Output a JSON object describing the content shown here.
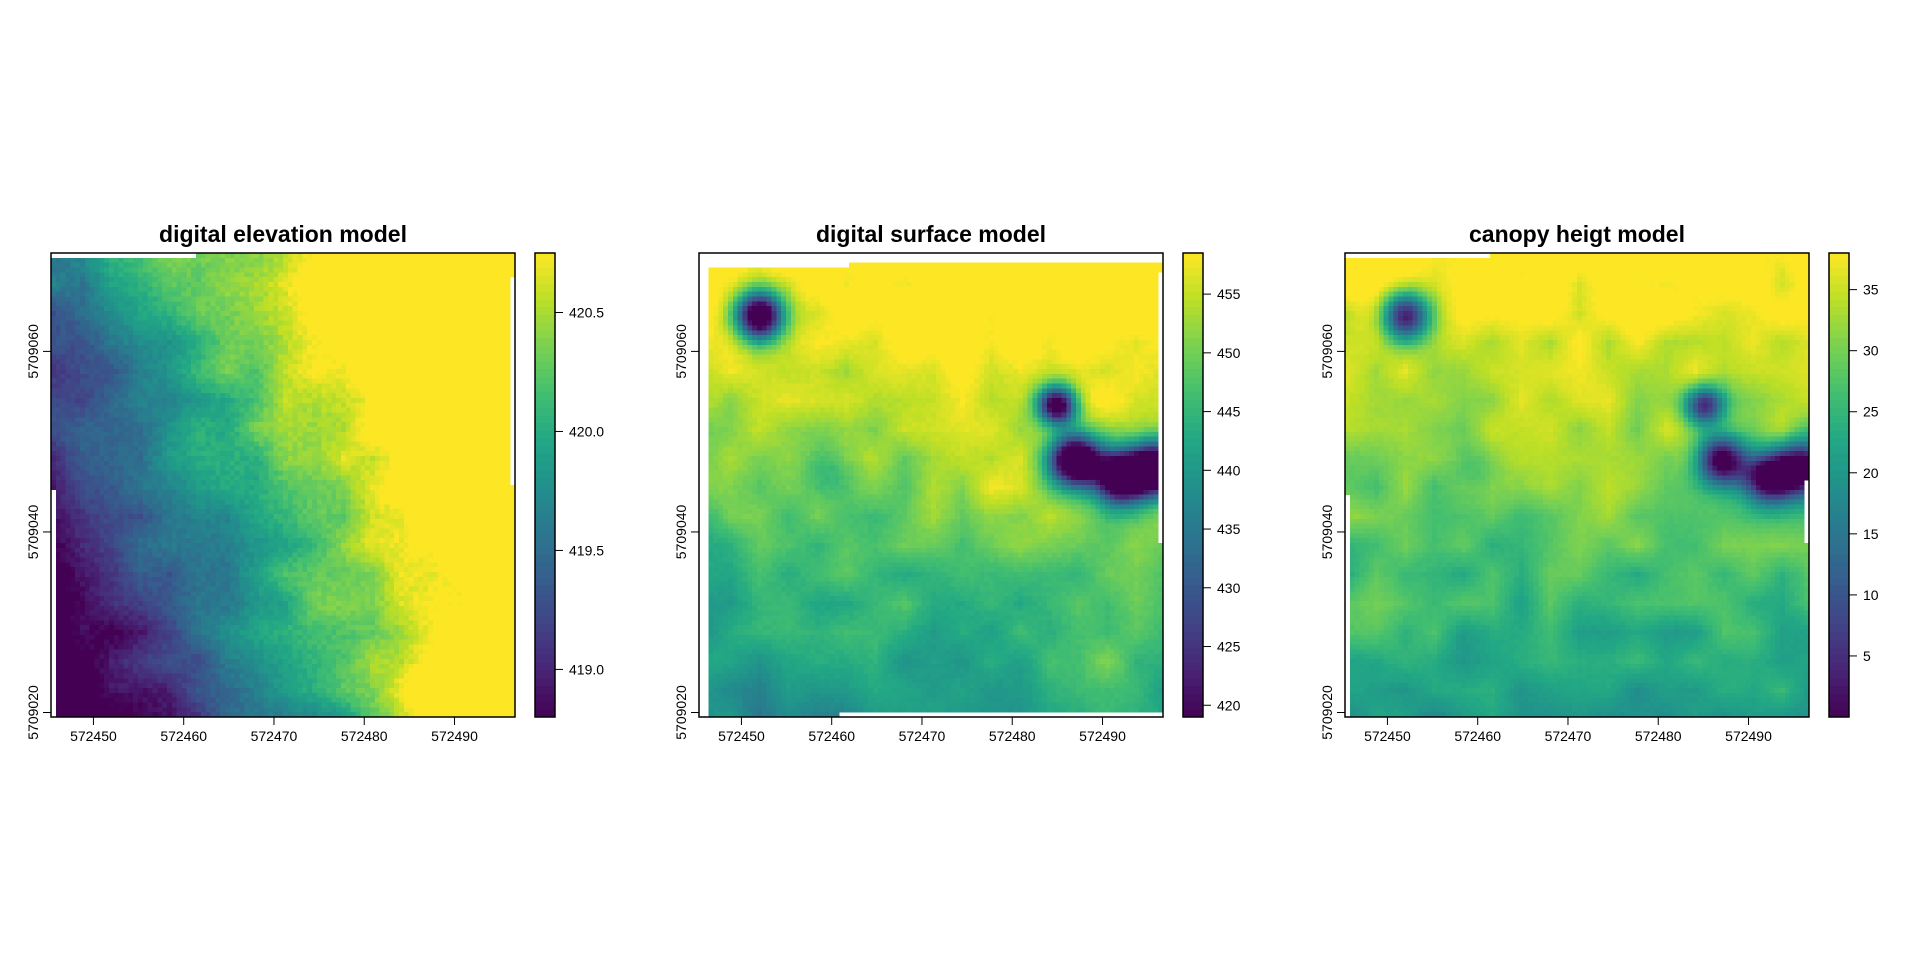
{
  "chart_data": [
    {
      "type": "heatmap",
      "title": "digital elevation model",
      "x_ticks": [
        572450,
        572460,
        572470,
        572480,
        572490
      ],
      "y_ticks": [
        5709020,
        5709040,
        5709060
      ],
      "xlim": [
        572445.3,
        572496.7
      ],
      "ylim": [
        5709019.5,
        5709070.9
      ],
      "legend": {
        "position": "right",
        "range": [
          418.8,
          420.75
        ],
        "ticks": [
          419.0,
          419.5,
          420.0,
          420.5
        ],
        "tick_labels": [
          "419.0",
          "419.5",
          "420.0",
          "420.5"
        ]
      },
      "grid": false,
      "field": {
        "base": 419.05,
        "gx": 0.28,
        "gy": -0.32,
        "noise": 0.12,
        "bumps": [
          {
            "x": 572492,
            "y": 5709022,
            "r": 7,
            "v": 1.2
          },
          {
            "x": 572475,
            "y": 5709028,
            "r": 10,
            "v": 0.3
          },
          {
            "x": 572450,
            "y": 5709060,
            "r": 7,
            "v": -0.25
          },
          {
            "x": 572468,
            "y": 5709069,
            "r": 6,
            "v": -0.25
          },
          {
            "x": 572488,
            "y": 5709042,
            "r": 5,
            "v": 0.3
          }
        ],
        "nodata": [
          {
            "x0": 572445.3,
            "x1": 572461.1,
            "y0": 5709070.4,
            "y1": 5709070.9
          },
          {
            "x0": 572445.3,
            "x1": 572445.7,
            "y0": 5709019.5,
            "y1": 5709044.5
          },
          {
            "x0": 572496.2,
            "x1": 572496.7,
            "y0": 5709045.0,
            "y1": 5709068.0
          }
        ]
      }
    },
    {
      "type": "heatmap",
      "title": "digital surface model",
      "x_ticks": [
        572450,
        572460,
        572470,
        572480,
        572490
      ],
      "y_ticks": [
        5709020,
        5709040,
        5709060
      ],
      "xlim": [
        572445.3,
        572496.7
      ],
      "ylim": [
        5709019.5,
        5709070.9
      ],
      "legend": {
        "position": "right",
        "range": [
          419.0,
          458.5
        ],
        "ticks": [
          420,
          425,
          430,
          435,
          440,
          445,
          450,
          455
        ],
        "tick_labels": [
          "420",
          "425",
          "430",
          "435",
          "440",
          "445",
          "450",
          "455"
        ]
      },
      "grid": false,
      "field": {
        "base": 449.0,
        "gx": 0.5,
        "gy": -6.0,
        "noise": 1.0,
        "bumps": [
          {
            "x": 572452,
            "y": 5709064,
            "r": 2.6,
            "v": -48
          },
          {
            "x": 572485,
            "y": 5709054,
            "r": 2.2,
            "v": -42
          },
          {
            "x": 572487,
            "y": 5709048,
            "r": 2.8,
            "v": -48
          },
          {
            "x": 572492,
            "y": 5709046,
            "r": 2.8,
            "v": -48
          },
          {
            "x": 572496,
            "y": 5709047,
            "r": 3.0,
            "v": -48
          },
          {
            "x": 572460,
            "y": 5709047,
            "r": 3.0,
            "v": -6
          },
          {
            "x": 572478,
            "y": 5709044,
            "r": 6,
            "v": 3
          },
          {
            "x": 572490,
            "y": 5709024,
            "r": 6,
            "v": 5
          }
        ],
        "nodata": [
          {
            "x0": 572445.3,
            "x1": 572446.3,
            "y0": 5709019.5,
            "y1": 5709070.9
          },
          {
            "x0": 572445.3,
            "x1": 572496.7,
            "y0": 5709069.9,
            "y1": 5709070.9
          },
          {
            "x0": 572445.3,
            "x1": 572462.0,
            "y0": 5709069.2,
            "y1": 5709070.9
          },
          {
            "x0": 572461.0,
            "x1": 572496.7,
            "y0": 5709019.5,
            "y1": 5709019.9
          },
          {
            "x0": 572496.2,
            "x1": 572496.7,
            "y0": 5709039.0,
            "y1": 5709069.0
          },
          {
            "x0": 572445.3,
            "x1": 572446.3,
            "y0": 5709019.5,
            "y1": 5709019.9
          }
        ]
      }
    },
    {
      "type": "heatmap",
      "title": "canopy heigt model",
      "x_ticks": [
        572450,
        572460,
        572470,
        572480,
        572490
      ],
      "y_ticks": [
        5709020,
        5709040,
        5709060
      ],
      "xlim": [
        572445.3,
        572496.7
      ],
      "ylim": [
        5709019.5,
        5709070.9
      ],
      "legend": {
        "position": "right",
        "range": [
          0.0,
          38.0
        ],
        "ticks": [
          5,
          10,
          15,
          20,
          25,
          30,
          35
        ],
        "tick_labels": [
          "5",
          "10",
          "15",
          "20",
          "25",
          "30",
          "35"
        ]
      },
      "grid": false,
      "field": {
        "base": 30.0,
        "gx": 0.0,
        "gy": -5.0,
        "noise": 0.7,
        "bumps": [
          {
            "x": 572452,
            "y": 5709064,
            "r": 2.6,
            "v": -36
          },
          {
            "x": 572485,
            "y": 5709054,
            "r": 2.2,
            "v": -30
          },
          {
            "x": 572487,
            "y": 5709048,
            "r": 2.8,
            "v": -34
          },
          {
            "x": 572492,
            "y": 5709046,
            "r": 2.8,
            "v": -34
          },
          {
            "x": 572496,
            "y": 5709047,
            "r": 3.0,
            "v": -34
          },
          {
            "x": 572460,
            "y": 5709047,
            "r": 3.0,
            "v": -5
          },
          {
            "x": 572478,
            "y": 5709044,
            "r": 6,
            "v": 2
          },
          {
            "x": 572450,
            "y": 5709028,
            "r": 6,
            "v": 3
          },
          {
            "x": 572490,
            "y": 5709024,
            "r": 6,
            "v": 3
          }
        ],
        "nodata": [
          {
            "x0": 572445.3,
            "x1": 572461.5,
            "y0": 5709070.4,
            "y1": 5709070.9
          },
          {
            "x0": 572445.3,
            "x1": 572445.7,
            "y0": 5709019.5,
            "y1": 5709044.0
          },
          {
            "x0": 572496.2,
            "x1": 572496.7,
            "y0": 5709039.0,
            "y1": 5709046.0
          }
        ]
      }
    }
  ]
}
